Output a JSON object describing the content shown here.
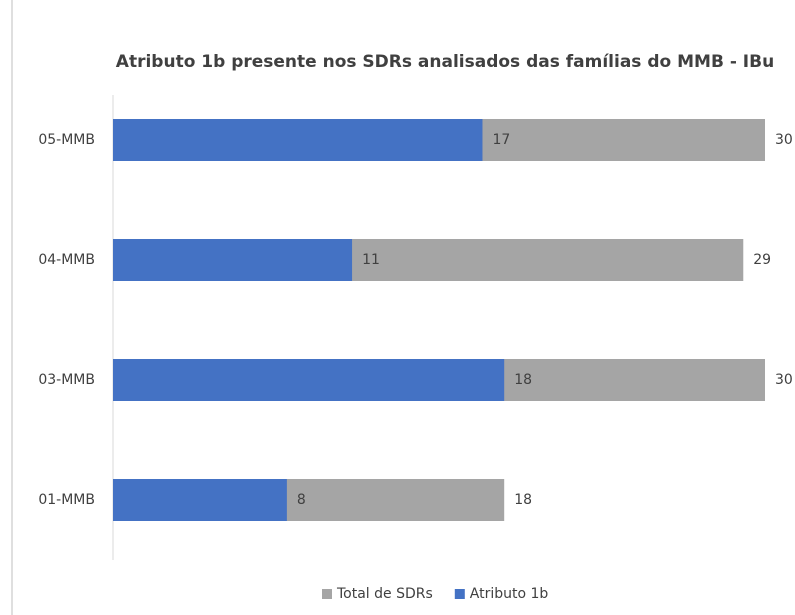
{
  "chart_data": {
    "type": "hbar_overlap",
    "title": "Atributo 1b presente nos SDRs analisados das famílias do MMB - IBu",
    "categories": [
      "05-MMB",
      "04-MMB",
      "03-MMB",
      "01-MMB"
    ],
    "series": [
      {
        "name": "Total de SDRs",
        "color": "#a5a5a5",
        "values": [
          30,
          29,
          30,
          18
        ]
      },
      {
        "name": "Atributo 1b",
        "color": "#4472c4",
        "values": [
          17,
          11,
          18,
          8
        ]
      }
    ],
    "xlim": [
      0,
      30
    ],
    "legend": "bottom"
  }
}
